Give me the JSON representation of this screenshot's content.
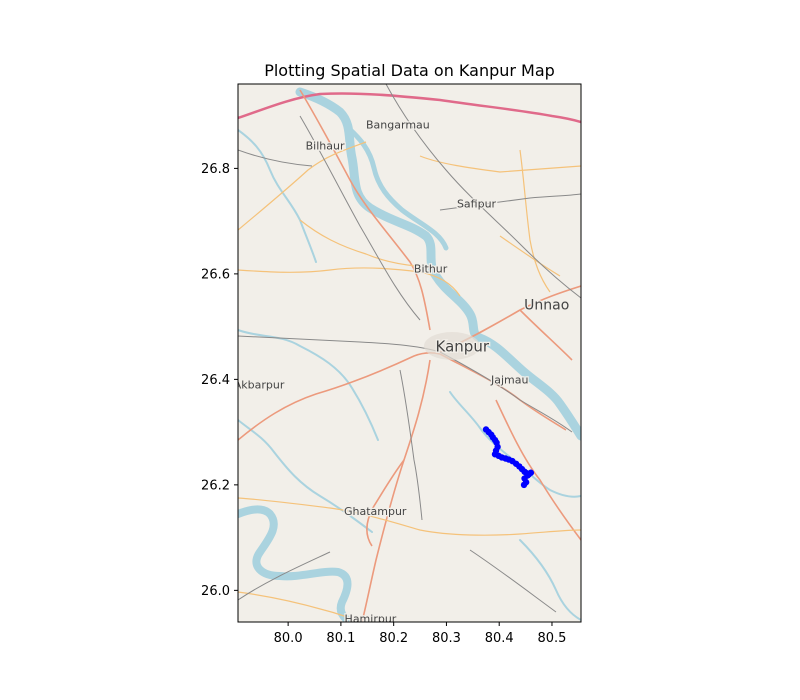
{
  "chart_data": {
    "type": "scatter",
    "title": "Plotting Spatial Data on Kanpur Map",
    "xlabel": "",
    "ylabel": "",
    "xlim": [
      79.905,
      80.555
    ],
    "ylim": [
      25.94,
      26.96
    ],
    "x_ticks": [
      "80.0",
      "80.1",
      "80.2",
      "80.3",
      "80.4",
      "80.5"
    ],
    "y_ticks": [
      "26.0",
      "26.2",
      "26.4",
      "26.6",
      "26.8"
    ],
    "grid": false,
    "basemap": "OpenStreetMap",
    "series": [
      {
        "color": "#0000ff",
        "x": [
          80.375,
          80.38,
          80.385,
          80.388,
          80.392,
          80.395,
          80.397,
          80.394,
          80.392,
          80.399,
          80.405,
          80.412,
          80.418,
          80.425,
          80.432,
          80.438,
          80.443,
          80.448,
          80.452,
          80.456,
          80.46,
          80.454,
          80.448,
          80.451,
          80.447
        ],
        "y": [
          26.305,
          26.3,
          26.295,
          26.29,
          26.285,
          26.28,
          26.272,
          26.265,
          26.258,
          26.255,
          26.252,
          26.25,
          26.248,
          26.245,
          26.24,
          26.235,
          26.23,
          26.225,
          26.222,
          26.22,
          26.223,
          26.218,
          26.212,
          26.205,
          26.2
        ]
      }
    ]
  },
  "map": {
    "places": [
      {
        "name": "Bangarmau",
        "lon": 80.208,
        "lat": 26.883,
        "size": 11
      },
      {
        "name": "Bilhaur",
        "lon": 80.07,
        "lat": 26.843,
        "size": 11
      },
      {
        "name": "Safipur",
        "lon": 80.357,
        "lat": 26.733,
        "size": 11
      },
      {
        "name": "Bithur",
        "lon": 80.27,
        "lat": 26.61,
        "size": 11
      },
      {
        "name": "Unnao",
        "lon": 80.49,
        "lat": 26.54,
        "size": 14
      },
      {
        "name": "Kanpur",
        "lon": 80.33,
        "lat": 26.46,
        "size": 15
      },
      {
        "name": "Jajmau",
        "lon": 80.42,
        "lat": 26.4,
        "size": 11
      },
      {
        "name": "Akbarpur",
        "lon": 79.945,
        "lat": 26.39,
        "size": 11
      },
      {
        "name": "Ghatampur",
        "lon": 80.165,
        "lat": 26.15,
        "size": 11
      },
      {
        "name": "Hamirpur",
        "lon": 80.156,
        "lat": 25.947,
        "size": 11
      }
    ]
  }
}
